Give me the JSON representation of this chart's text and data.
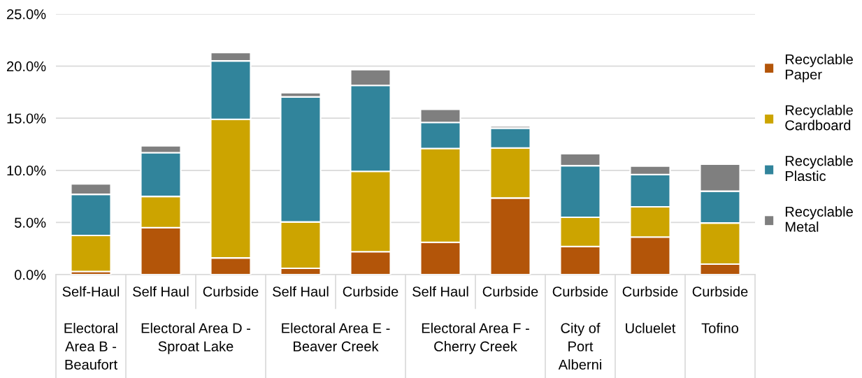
{
  "chart_data": {
    "type": "bar",
    "stacked": true,
    "categories": [
      "Self-Haul",
      "Self Haul",
      "Curbside",
      "Self Haul",
      "Curbside",
      "Self Haul",
      "Curbside",
      "Curbside",
      "Curbside",
      "Curbside"
    ],
    "annotations": [
      "Electoral\nArea B -\nBeaufort",
      "Electoral Area D -\nSproat Lake",
      "Electoral Area E -\nBeaver Creek",
      "Electoral Area F -\nCherry Creek",
      "City of\nPort\nAlberni",
      "Ucluelet",
      "Tofino"
    ],
    "series": [
      {
        "name": "Recyclable\nPaper",
        "color": "#b35509",
        "values": [
          0.3,
          4.5,
          1.6,
          0.6,
          2.2,
          3.1,
          7.35,
          2.7,
          3.6,
          1.0
        ]
      },
      {
        "name": "Recyclable\nCardboard",
        "color": "#cca400",
        "values": [
          3.45,
          3.0,
          13.3,
          4.45,
          7.7,
          9.0,
          4.8,
          2.8,
          2.9,
          3.95
        ]
      },
      {
        "name": "Recyclable\nPlastic",
        "color": "#31849b",
        "values": [
          3.95,
          4.2,
          5.6,
          12.0,
          8.25,
          2.5,
          1.9,
          4.95,
          3.1,
          3.05
        ]
      },
      {
        "name": "Recyclable\nMetal",
        "color": "#7f7f7f",
        "values": [
          1.0,
          0.65,
          0.8,
          0.4,
          1.5,
          1.25,
          0.2,
          1.15,
          0.8,
          2.6
        ]
      }
    ],
    "ylim": [
      0,
      25
    ],
    "yticks": [
      {
        "value": 0,
        "label": "0.0%"
      },
      {
        "value": 5,
        "label": "5.0%"
      },
      {
        "value": 10,
        "label": "10.0%"
      },
      {
        "value": 15,
        "label": "15.0%"
      },
      {
        "value": 20,
        "label": "20.0%"
      },
      {
        "value": 25,
        "label": "25.0%"
      }
    ],
    "grid": "y",
    "legend": "right"
  }
}
